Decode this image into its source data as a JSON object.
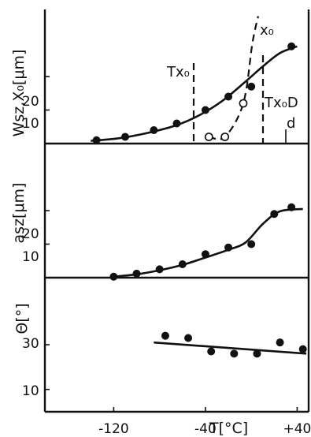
{
  "chart_data": [
    {
      "type": "line",
      "ylabel": "Wsz,X₀[μm]",
      "x_range": [
        -180,
        50
      ],
      "ylim": [
        0,
        40
      ],
      "yticks": [
        10,
        20
      ],
      "series": [
        {
          "values_x": [
            -135,
            -110,
            -85,
            -65,
            -40,
            -20,
            0,
            35
          ],
          "values_y": [
            1,
            2,
            4,
            6,
            10,
            14,
            17,
            29
          ],
          "marker": "filled",
          "line": "solid-fit",
          "fit_x": [
            -140,
            -115,
            -90,
            -65,
            -45,
            -25,
            -5,
            10,
            25,
            40
          ],
          "fit_y": [
            0.8,
            1.6,
            3.2,
            5.5,
            8.5,
            12.8,
            18.5,
            23,
            27,
            29
          ]
        },
        {
          "values_x": [
            -37,
            -23,
            -7
          ],
          "values_y": [
            2,
            2,
            12
          ],
          "marker": "open",
          "line": "dashed"
        }
      ],
      "annotations": [
        {
          "text": "Tx₀",
          "x": -40
        },
        {
          "text": "x₀",
          "x": 8
        },
        {
          "text": "Tx₀D",
          "x": 20
        },
        {
          "text": "d",
          "x": 38
        }
      ]
    },
    {
      "type": "line",
      "ylabel": "asz[μm]",
      "x_range": [
        -180,
        50
      ],
      "ylim": [
        0,
        40
      ],
      "yticks": [
        10,
        20
      ],
      "series": [
        {
          "values_x": [
            -120,
            -100,
            -80,
            -60,
            -40,
            -20,
            0,
            20,
            35
          ],
          "values_y": [
            0.3,
            1.2,
            2.5,
            4,
            7,
            9,
            10,
            19,
            21
          ],
          "marker": "filled",
          "line": "solid-fit",
          "fit_x": [
            -120,
            -100,
            -80,
            -60,
            -40,
            -20,
            -5,
            10,
            25,
            45
          ],
          "fit_y": [
            0.3,
            1,
            2.2,
            3.8,
            6,
            8.3,
            10.5,
            16,
            19.8,
            20.5
          ]
        }
      ]
    },
    {
      "type": "scatter",
      "ylabel": "Θ[°]",
      "xlabel": "T[°C]",
      "x_range": [
        -180,
        50
      ],
      "ylim": [
        0,
        60
      ],
      "yticks": [
        10,
        30
      ],
      "xticks": [
        -120,
        -40,
        40
      ],
      "xtick_labels": [
        "-120",
        "-40",
        "+40"
      ],
      "series": [
        {
          "values_x": [
            -75,
            -55,
            -35,
            -15,
            5,
            25,
            45
          ],
          "values_y": [
            34,
            33,
            27,
            26,
            26,
            31,
            28
          ],
          "marker": "filled",
          "line": "linear-fit",
          "fit_x": [
            -85,
            48
          ],
          "fit_y": [
            31,
            26
          ]
        }
      ]
    }
  ]
}
